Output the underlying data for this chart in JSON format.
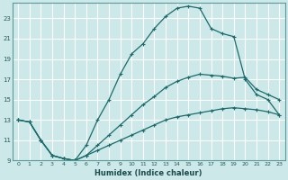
{
  "xlabel": "Humidex (Indice chaleur)",
  "xlim": [
    -0.5,
    23.5
  ],
  "ylim": [
    9,
    24.5
  ],
  "xticks": [
    0,
    1,
    2,
    3,
    4,
    5,
    6,
    7,
    8,
    9,
    10,
    11,
    12,
    13,
    14,
    15,
    16,
    17,
    18,
    19,
    20,
    21,
    22,
    23
  ],
  "yticks": [
    9,
    11,
    13,
    15,
    17,
    19,
    21,
    23
  ],
  "bg_color": "#cce8e8",
  "line_color": "#1a6b6b",
  "grid_color": "#ffffff",
  "line1_x": [
    0,
    1,
    2,
    3,
    4,
    5,
    6,
    7,
    8,
    9,
    10,
    11,
    12,
    13,
    14,
    15,
    16,
    17,
    18,
    19,
    20,
    21,
    22,
    23
  ],
  "line1_y": [
    13,
    12.8,
    11.0,
    9.5,
    9.2,
    9.0,
    9.5,
    10.0,
    10.5,
    11.0,
    11.5,
    12.0,
    12.5,
    13.0,
    13.3,
    13.5,
    13.7,
    13.9,
    14.1,
    14.2,
    14.1,
    14.0,
    13.8,
    13.5
  ],
  "line2_x": [
    0,
    1,
    2,
    3,
    4,
    5,
    6,
    7,
    8,
    9,
    10,
    11,
    12,
    13,
    14,
    15,
    16,
    17,
    18,
    19,
    20,
    21,
    22,
    23
  ],
  "line2_y": [
    13,
    12.8,
    11.0,
    9.5,
    9.2,
    9.0,
    9.5,
    10.5,
    11.5,
    12.5,
    13.5,
    14.5,
    15.3,
    16.2,
    16.8,
    17.2,
    17.5,
    17.4,
    17.3,
    17.1,
    17.2,
    16.0,
    15.5,
    15.0
  ],
  "line3_x": [
    0,
    1,
    2,
    3,
    4,
    5,
    6,
    7,
    8,
    9,
    10,
    11,
    12,
    13,
    14,
    15,
    16,
    17,
    18,
    19,
    20,
    21,
    22,
    23
  ],
  "line3_y": [
    13,
    12.8,
    11.0,
    9.5,
    9.2,
    9.0,
    10.5,
    13.0,
    15.0,
    17.5,
    19.5,
    20.5,
    22.0,
    23.2,
    24.0,
    24.2,
    24.0,
    22.0,
    21.5,
    21.2,
    17.0,
    15.5,
    15.0,
    13.5
  ]
}
